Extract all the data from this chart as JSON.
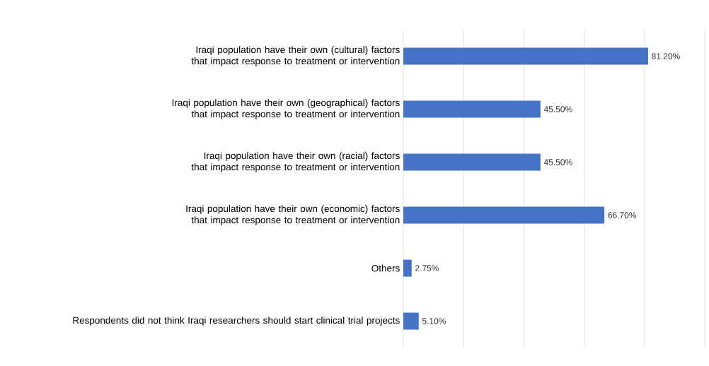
{
  "chart_data": {
    "type": "bar",
    "orientation": "horizontal",
    "categories": [
      "Iraqi population have their own (cultural) factors that impact response to treatment or intervention",
      "Iraqi population have their own (geographical) factors that impact response to treatment or intervention",
      "Iraqi population have their own (racial) factors that impact response to treatment or intervention",
      "Iraqi population have their own (economic) factors that impact response to treatment or intervention",
      "Others",
      "Respondents did not think Iraqi researchers should start clinical trial projects"
    ],
    "values": [
      81.2,
      45.5,
      45.5,
      66.7,
      2.75,
      5.1
    ],
    "value_labels": [
      "81.20%",
      "45.50%",
      "45.50%",
      "66.70%",
      "2.75%",
      "5.10%"
    ],
    "color": "#4472c4",
    "xlim": [
      0,
      100
    ],
    "xticks": [
      {
        "value": 0,
        "label": null
      },
      {
        "value": 20,
        "label": null
      },
      {
        "value": 40,
        "label": null
      },
      {
        "value": 60,
        "label": null
      },
      {
        "value": 80,
        "label": null
      },
      {
        "value": 100,
        "label": null
      }
    ],
    "grid": "x",
    "tick_labels": "y"
  }
}
